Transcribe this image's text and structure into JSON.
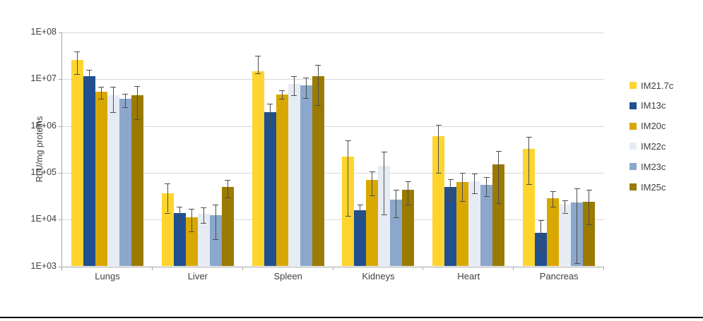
{
  "chart_data": {
    "type": "bar",
    "scale": "log10",
    "title": "",
    "ylabel": "RLU/mg proteins",
    "xlabel": "",
    "ylim": [
      1000,
      100000000
    ],
    "grid": "horizontal",
    "legend_position": "right",
    "ytick_labels": [
      "1E+08",
      "1E+07",
      "1E+06",
      "1E+05",
      "1E+04",
      "1E+03"
    ],
    "categories": [
      "Lungs",
      "Liver",
      "Spleen",
      "Kidneys",
      "Heart",
      "Pancreas"
    ],
    "error_bars": true,
    "series": [
      {
        "name": "IM21.7c",
        "color": "#FFD42E",
        "values": [
          26000000.0,
          37000.0,
          15000000.0,
          220000.0,
          600000.0,
          320000.0
        ],
        "err_hi": [
          39000000.0,
          60000.0,
          32000000.0,
          500000.0,
          1050000.0,
          580000.0
        ],
        "err_lo": [
          13000000.0,
          14000.0,
          13500000.0,
          12000.0,
          100000.0,
          58000.0
        ]
      },
      {
        "name": "IM13c",
        "color": "#20508F",
        "values": [
          11500000.0,
          14000.0,
          2000000.0,
          16000.0,
          50000.0,
          5200.0
        ],
        "err_hi": [
          16000000.0,
          19000.0,
          3000000.0,
          21000.0,
          72000.0,
          9800.0
        ],
        "err_lo": [
          7600000.0,
          9500.0,
          1000000.0,
          11000.0,
          25000.0,
          2200.0
        ]
      },
      {
        "name": "IM20c",
        "color": "#D9A800",
        "values": [
          5400000.0,
          11000.0,
          4700000.0,
          70000.0,
          63000.0,
          29000.0
        ],
        "err_hi": [
          7000000.0,
          17000.0,
          5800000.0,
          105000.0,
          100000.0,
          41000.0
        ],
        "err_lo": [
          3800000.0,
          5500.0,
          3800000.0,
          33000.0,
          25000.0,
          19000.0
        ]
      },
      {
        "name": "IM22c",
        "color": "#E7ECF4",
        "values": [
          4600000.0,
          13500.0,
          8000000.0,
          140000.0,
          65000.0,
          21000.0
        ],
        "err_hi": [
          7000000.0,
          18000.0,
          11500000.0,
          280000.0,
          95000.0,
          26000.0
        ],
        "err_lo": [
          2000000.0,
          8500.0,
          4500000.0,
          13000.0,
          36000.0,
          14000.0
        ]
      },
      {
        "name": "IM23c",
        "color": "#8BA7CB",
        "values": [
          3800000.0,
          12500.0,
          7500000.0,
          27000.0,
          55000.0,
          23000.0
        ],
        "err_hi": [
          4900000.0,
          21000.0,
          11000000.0,
          44000.0,
          80000.0,
          47000.0
        ],
        "err_lo": [
          2500000.0,
          3800.0,
          4000000.0,
          11000.0,
          32000.0,
          1150.0
        ]
      },
      {
        "name": "IM25c",
        "color": "#9A7A00",
        "values": [
          4500000.0,
          50000.0,
          11500000.0,
          43000.0,
          150000.0,
          24000.0
        ],
        "err_hi": [
          7200000.0,
          70000.0,
          20000000.0,
          66000.0,
          290000.0,
          43000.0
        ],
        "err_lo": [
          1400000.0,
          30000.0,
          2800000.0,
          21000.0,
          22000.0,
          8000.0
        ]
      }
    ]
  }
}
